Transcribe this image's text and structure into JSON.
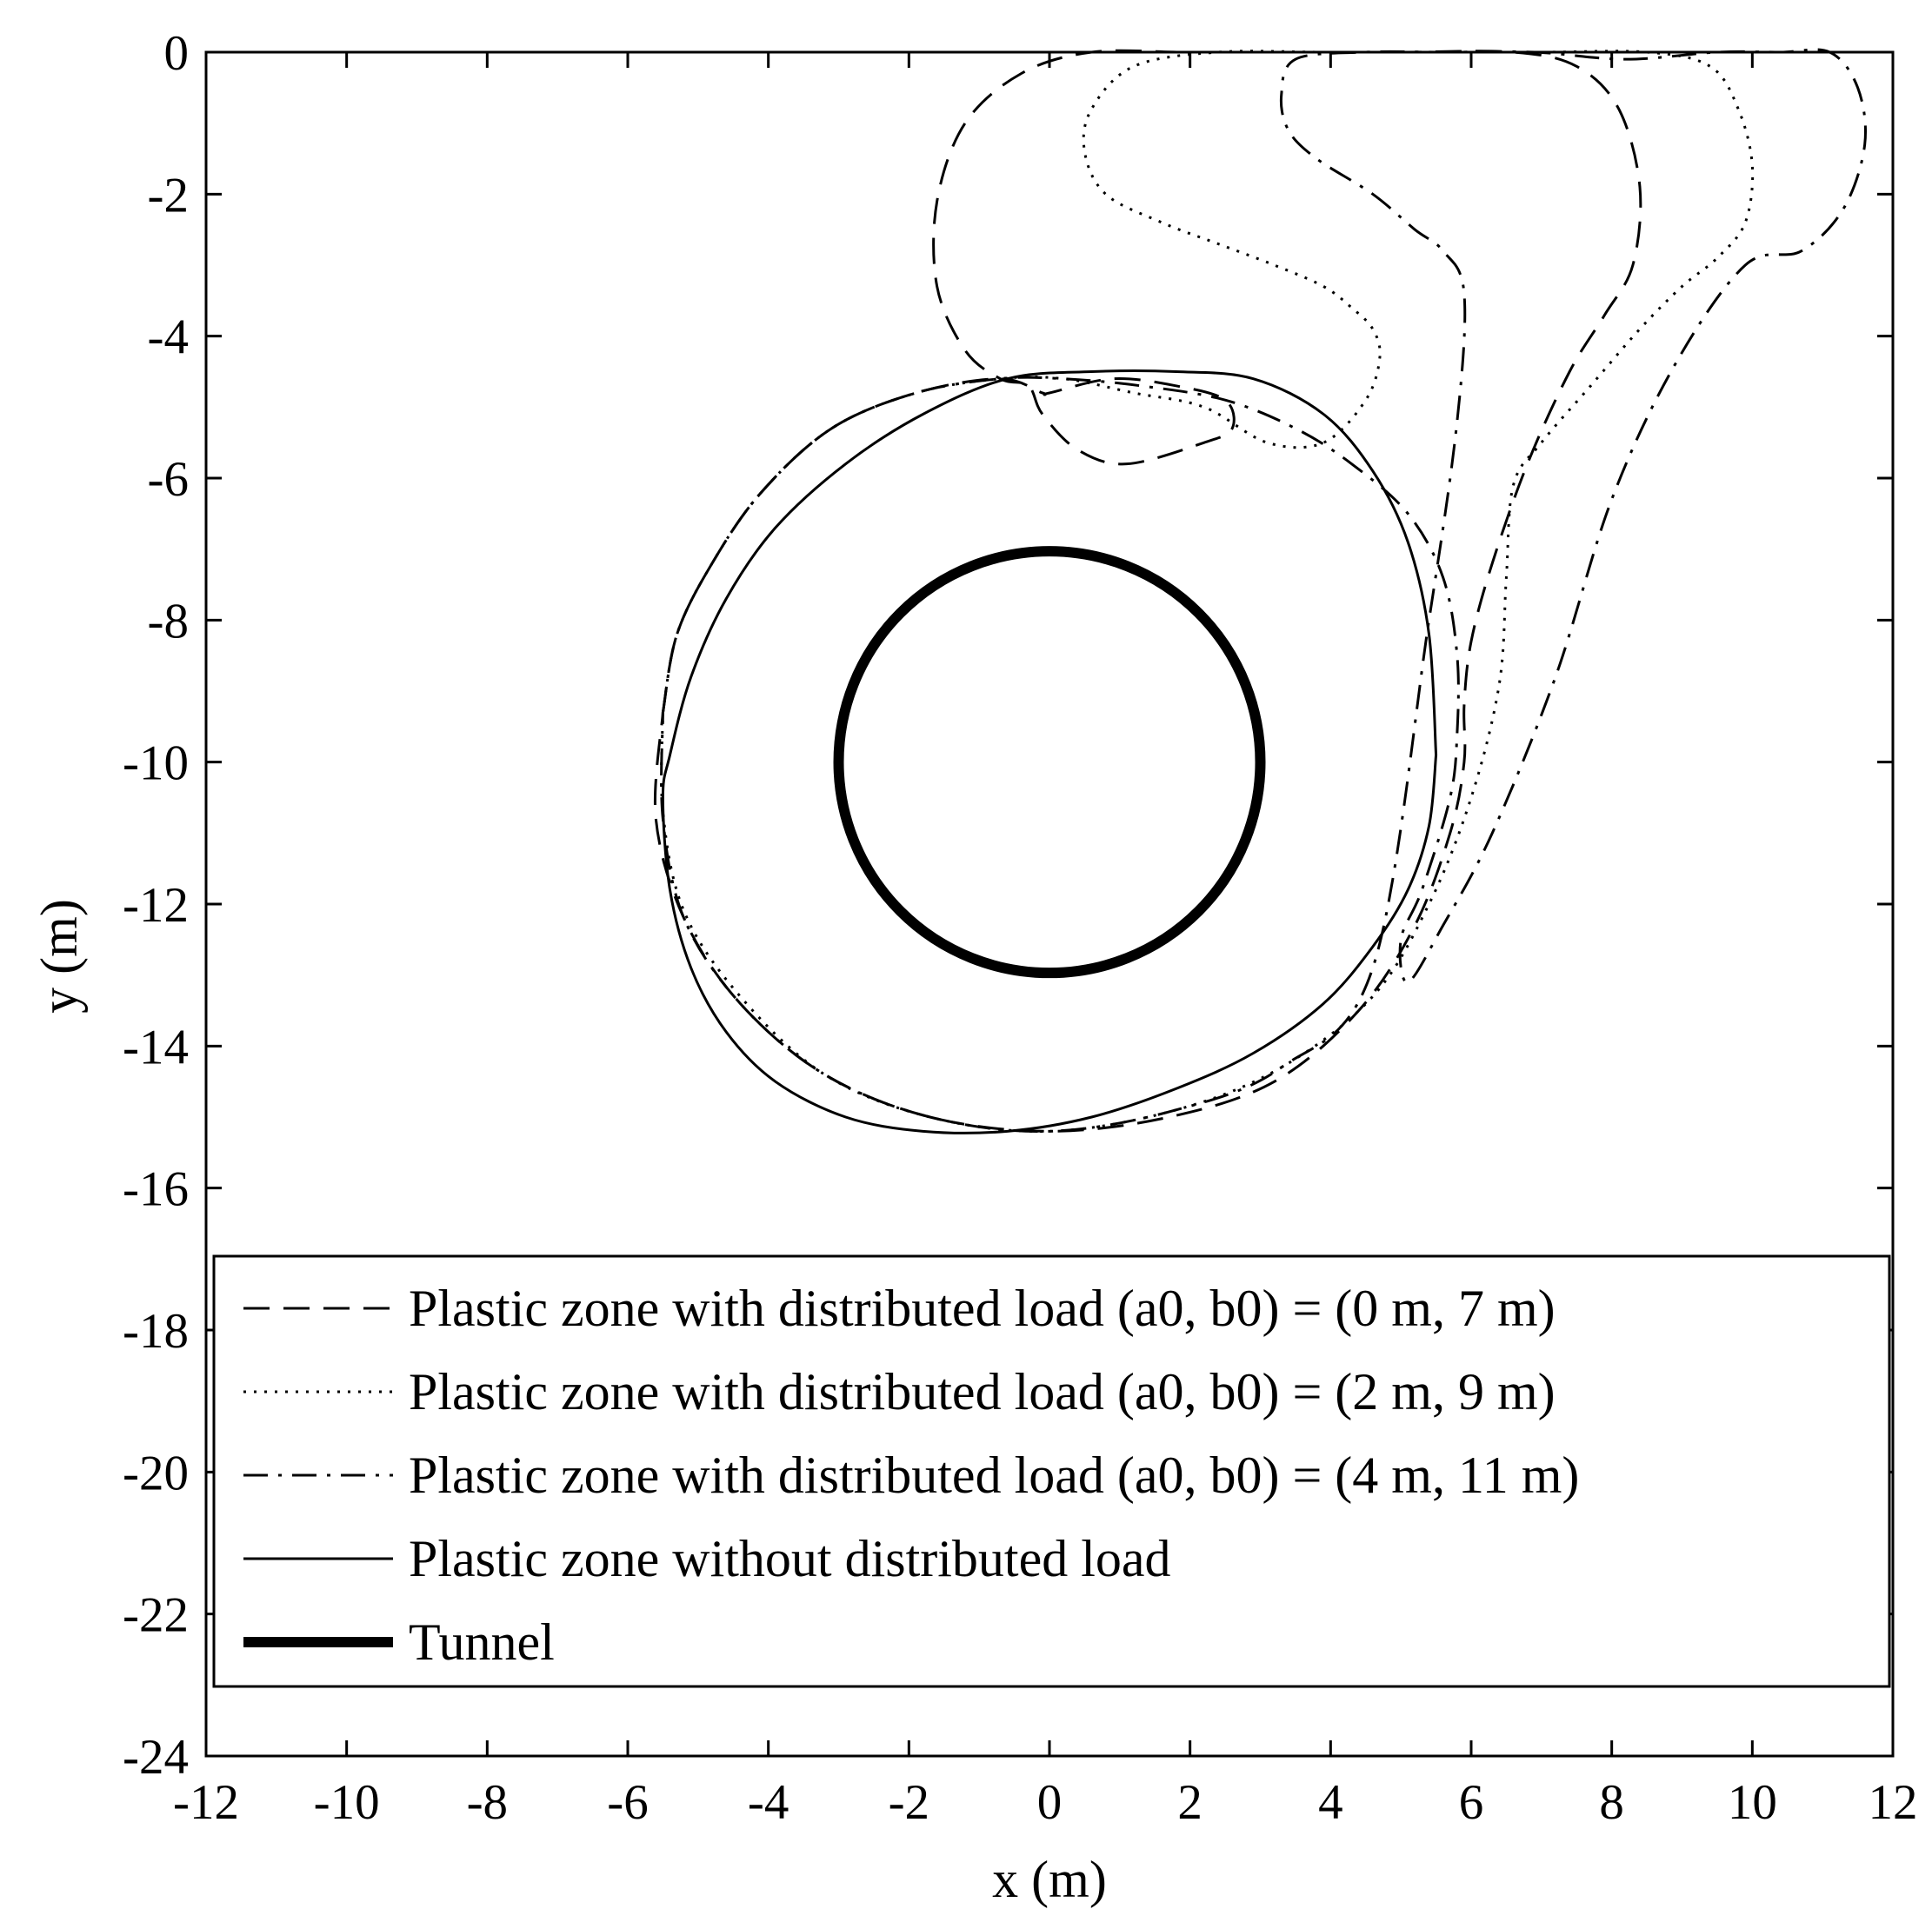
{
  "chart_data": {
    "type": "line",
    "title": "",
    "xlabel": "x (m)",
    "ylabel": "y (m)",
    "xlim": [
      -12,
      12
    ],
    "ylim": [
      -24,
      0
    ],
    "xticks": [
      -12,
      -10,
      -8,
      -6,
      -4,
      -2,
      0,
      2,
      4,
      6,
      8,
      10,
      12
    ],
    "yticks": [
      0,
      -2,
      -4,
      -6,
      -8,
      -10,
      -12,
      -14,
      -16,
      -18,
      -20,
      -22,
      -24
    ],
    "xtick_labels": [
      "-12",
      "-10",
      "-8",
      "-6",
      "-4",
      "-2",
      "0",
      "2",
      "4",
      "6",
      "8",
      "10",
      "12"
    ],
    "ytick_labels": [
      "0",
      "-2",
      "-4",
      "-6",
      "-8",
      "-10",
      "-12",
      "-14",
      "-16",
      "-18",
      "-20",
      "-22",
      "-24"
    ],
    "grid": false,
    "legend_position": "bottom",
    "series": [
      {
        "name": "Plastic zone with distributed load (a0, b0) = (0 m, 7 m)",
        "style": "dashed",
        "color": "#000000",
        "x": [
          -5.5,
          -5.3,
          -4.8,
          -4.1,
          -3.1,
          -1.9,
          -0.7,
          -0.1,
          0.0,
          0.9,
          1.8,
          2.5,
          2.6,
          2.2,
          1.1,
          0.4,
          -0.1,
          -0.3,
          -0.7,
          -1.2,
          -1.6,
          -1.6,
          -1.2,
          -0.4,
          0.6,
          1.9,
          3.1,
          4.1,
          5.1,
          6.6,
          7.5,
          8.1,
          8.4,
          8.3,
          7.9,
          7.4,
          6.8,
          6.3,
          6.0,
          5.9,
          5.9,
          5.7,
          5.2,
          4.4,
          3.2,
          1.7,
          0.0,
          -1.7,
          -3.2,
          -4.4,
          -5.2,
          -5.6,
          -5.5
        ],
        "y": [
          -9.3,
          -8.2,
          -7.2,
          -6.2,
          -5.3,
          -4.8,
          -4.6,
          -4.8,
          -4.8,
          -4.6,
          -4.7,
          -4.9,
          -5.3,
          -5.5,
          -5.8,
          -5.6,
          -5.1,
          -4.7,
          -4.6,
          -4.2,
          -3.3,
          -2.1,
          -1.0,
          -0.3,
          0.0,
          0.0,
          0.0,
          0.0,
          0.0,
          0.0,
          -0.2,
          -0.8,
          -1.9,
          -3.0,
          -3.7,
          -4.5,
          -5.8,
          -7.2,
          -8.3,
          -9.2,
          -10.0,
          -11.0,
          -12.3,
          -13.5,
          -14.5,
          -15.0,
          -15.2,
          -15.0,
          -14.4,
          -13.4,
          -12.2,
          -10.8,
          -9.3
        ]
      },
      {
        "name": "Plastic zone with distributed load (a0, b0) = (2 m, 9 m)",
        "style": "dotted",
        "color": "#000000",
        "x": [
          -5.5,
          -5.3,
          -4.8,
          -4.1,
          -3.1,
          -1.9,
          -0.7,
          0.2,
          1.2,
          2.2,
          3.1,
          3.9,
          4.5,
          4.7,
          4.6,
          4.3,
          3.9,
          3.2,
          2.4,
          1.6,
          0.8,
          0.5,
          0.6,
          1.2,
          2.4,
          3.9,
          5.4,
          7.0,
          8.5,
          9.4,
          9.8,
          10.0,
          9.9,
          9.5,
          9.0,
          8.4,
          7.7,
          7.0,
          6.6,
          6.5,
          6.4,
          6.0,
          5.4,
          4.6,
          3.3,
          1.8,
          0.0,
          -1.7,
          -3.2,
          -4.4,
          -5.2,
          -5.5,
          -5.5
        ],
        "y": [
          -9.3,
          -8.2,
          -7.2,
          -6.2,
          -5.3,
          -4.8,
          -4.6,
          -4.6,
          -4.8,
          -5.0,
          -5.5,
          -5.5,
          -4.9,
          -4.3,
          -3.9,
          -3.6,
          -3.3,
          -3.0,
          -2.7,
          -2.4,
          -2.0,
          -1.4,
          -0.8,
          -0.2,
          0.0,
          0.0,
          0.0,
          0.0,
          0.0,
          -0.2,
          -0.8,
          -1.6,
          -2.4,
          -2.9,
          -3.3,
          -3.9,
          -4.7,
          -5.5,
          -6.1,
          -7.4,
          -8.9,
          -10.5,
          -12.0,
          -13.3,
          -14.3,
          -14.9,
          -15.2,
          -15.0,
          -14.4,
          -13.3,
          -12.1,
          -10.7,
          -9.3
        ]
      },
      {
        "name": "Plastic zone with distributed load (a0, b0) = (4 m, 11 m)",
        "style": "dashdot",
        "color": "#000000",
        "x": [
          -5.5,
          -5.3,
          -4.8,
          -4.1,
          -3.1,
          -1.9,
          -0.7,
          0.2,
          1.3,
          2.5,
          3.5,
          4.3,
          5.1,
          5.6,
          5.8,
          5.8,
          5.7,
          5.3,
          5.0,
          5.1,
          5.6,
          6.3,
          7.2,
          8.0,
          8.9,
          9.9,
          10.7,
          11.3,
          11.6,
          11.5,
          11.1,
          10.4,
          9.5,
          8.2,
          6.9,
          5.6,
          4.5,
          3.5,
          3.3,
          3.4,
          3.8,
          4.6,
          5.2,
          5.6,
          5.9,
          5.8,
          5.4,
          4.6,
          3.3,
          1.8,
          0.0,
          -1.7,
          -3.2,
          -4.4,
          -5.2,
          -5.5,
          -5.5
        ],
        "y": [
          -9.3,
          -8.2,
          -7.2,
          -6.2,
          -5.3,
          -4.8,
          -4.6,
          -4.6,
          -4.7,
          -4.9,
          -5.3,
          -5.8,
          -6.5,
          -7.4,
          -8.5,
          -9.6,
          -10.5,
          -11.8,
          -12.5,
          -13.1,
          -12.3,
          -11.0,
          -8.8,
          -6.3,
          -4.4,
          -3.0,
          -2.8,
          -2.2,
          -1.3,
          -0.5,
          0.0,
          0.0,
          0.0,
          -0.1,
          0.0,
          0.0,
          0.0,
          -0.1,
          -0.6,
          -1.1,
          -1.5,
          -2.0,
          -2.5,
          -2.8,
          -3.4,
          -5.2,
          -8.0,
          -12.9,
          -14.3,
          -14.9,
          -15.2,
          -15.0,
          -14.4,
          -13.4,
          -12.2,
          -10.8,
          -9.3
        ]
      },
      {
        "name": "Plastic zone without distributed load",
        "style": "solid",
        "color": "#000000",
        "x": [
          5.5,
          5.4,
          5.1,
          4.6,
          3.9,
          2.9,
          1.8,
          0.6,
          -0.6,
          -1.8,
          -2.9,
          -3.9,
          -4.6,
          -5.1,
          -5.4,
          -5.5,
          -5.4,
          -5.1,
          -4.6,
          -3.9,
          -2.9,
          -1.8,
          -0.6,
          0.6,
          1.8,
          2.9,
          3.9,
          4.6,
          5.1,
          5.4,
          5.5
        ],
        "y": [
          -9.9,
          -8.2,
          -6.9,
          -5.9,
          -5.1,
          -4.6,
          -4.5,
          -4.5,
          -4.6,
          -5.1,
          -5.8,
          -6.7,
          -7.7,
          -8.8,
          -9.9,
          -10.5,
          -11.8,
          -12.9,
          -13.8,
          -14.5,
          -15.0,
          -15.2,
          -15.2,
          -15.0,
          -14.6,
          -14.1,
          -13.4,
          -12.6,
          -11.8,
          -10.9,
          -9.9
        ]
      },
      {
        "name": "Tunnel",
        "style": "thick-solid",
        "color": "#000000",
        "shape": "circle",
        "center": [
          0,
          -10
        ],
        "radius": 3
      }
    ]
  }
}
